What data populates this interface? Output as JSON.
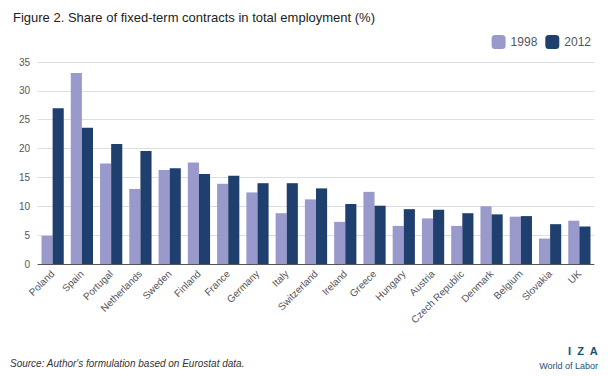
{
  "chart_data": {
    "type": "bar",
    "title": "Figure 2. Share of fixed-term contracts in total employment (%)",
    "categories": [
      "Poland",
      "Spain",
      "Portugal",
      "Netherlands",
      "Sweden",
      "Finland",
      "France",
      "Germany",
      "Italy",
      "Switzerland",
      "Ireland",
      "Greece",
      "Hungary",
      "Austria",
      "Czech Republic",
      "Denmark",
      "Belgium",
      "Slovakia",
      "UK"
    ],
    "series": [
      {
        "name": "1998",
        "color": "#9999cc",
        "values": [
          4.9,
          33.1,
          17.4,
          13.0,
          16.3,
          17.6,
          13.9,
          12.4,
          8.8,
          11.2,
          7.3,
          12.5,
          6.6,
          7.9,
          6.6,
          10.0,
          8.2,
          4.4,
          7.5
        ]
      },
      {
        "name": "2012",
        "color": "#1f3f6e",
        "values": [
          27.0,
          23.6,
          20.8,
          19.6,
          16.6,
          15.6,
          15.3,
          14.0,
          14.0,
          13.1,
          10.4,
          10.1,
          9.5,
          9.4,
          8.8,
          8.6,
          8.3,
          6.9,
          6.5
        ]
      }
    ],
    "ylim": [
      0,
      35
    ],
    "yticks": [
      0,
      5,
      10,
      15,
      20,
      25,
      30,
      35
    ],
    "grid": true,
    "legend": "upper right",
    "annotations": [
      "Source: Author's formulation based on Eurostat data.",
      "I  Z  A",
      "World of Labor"
    ]
  }
}
